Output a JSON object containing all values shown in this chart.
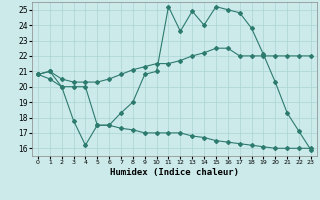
{
  "xlabel": "Humidex (Indice chaleur)",
  "bg_color": "#cceaea",
  "line_color": "#2d7a6e",
  "grid_color": "#aad4d4",
  "xlim": [
    -0.5,
    23.5
  ],
  "ylim": [
    15.5,
    25.5
  ],
  "xticks": [
    0,
    1,
    2,
    3,
    4,
    5,
    6,
    7,
    8,
    9,
    10,
    11,
    12,
    13,
    14,
    15,
    16,
    17,
    18,
    19,
    20,
    21,
    22,
    23
  ],
  "yticks": [
    16,
    17,
    18,
    19,
    20,
    21,
    22,
    23,
    24,
    25
  ],
  "line1_x": [
    0,
    1,
    2,
    3,
    4,
    5,
    6,
    7,
    8,
    9,
    10,
    11,
    12,
    13,
    14,
    15,
    16,
    17,
    18,
    19,
    20,
    21,
    22,
    23
  ],
  "line1_y": [
    20.8,
    21.0,
    20.0,
    17.8,
    16.2,
    17.5,
    17.5,
    18.3,
    19.0,
    20.8,
    21.0,
    25.2,
    23.6,
    24.9,
    24.0,
    25.2,
    25.0,
    24.8,
    23.8,
    22.1,
    20.3,
    18.3,
    17.1,
    15.9
  ],
  "line2_x": [
    0,
    1,
    2,
    3,
    4,
    5,
    6,
    7,
    8,
    9,
    10,
    11,
    12,
    13,
    14,
    15,
    16,
    17,
    18,
    19,
    20,
    21,
    22,
    23
  ],
  "line2_y": [
    20.8,
    21.0,
    20.5,
    20.3,
    20.3,
    20.3,
    20.5,
    20.8,
    21.1,
    21.3,
    21.5,
    21.5,
    21.7,
    22.0,
    22.2,
    22.5,
    22.5,
    22.0,
    22.0,
    22.0,
    22.0,
    22.0,
    22.0,
    22.0
  ],
  "line3_x": [
    0,
    1,
    2,
    3,
    4,
    5,
    6,
    7,
    8,
    9,
    10,
    11,
    12,
    13,
    14,
    15,
    16,
    17,
    18,
    19,
    20,
    21,
    22,
    23
  ],
  "line3_y": [
    20.8,
    20.5,
    20.0,
    20.0,
    20.0,
    17.5,
    17.5,
    17.3,
    17.2,
    17.0,
    17.0,
    17.0,
    17.0,
    16.8,
    16.7,
    16.5,
    16.4,
    16.3,
    16.2,
    16.1,
    16.0,
    16.0,
    16.0,
    16.0
  ]
}
